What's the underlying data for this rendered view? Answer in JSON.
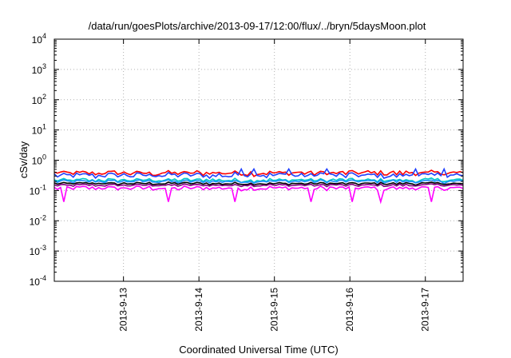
{
  "chart_data": {
    "type": "line",
    "title": "/data/run/goesPlots/archive/2013-09-17/12:00/flux/../bryn/5daysMoon.plot",
    "xlabel": "Coordinated Universal Time (UTC)",
    "ylabel": "cSv/day",
    "yscale": "log",
    "ylim": [
      0.0001,
      10000
    ],
    "xlim": [
      "2013-09-12 02:00",
      "2013-09-17 12:00"
    ],
    "x_ticks": [
      "2013-9-13",
      "2013-9-14",
      "2013-9-15",
      "2013-9-16",
      "2013-9-17"
    ],
    "y_ticks": [
      {
        "base": "10",
        "exp": "-4",
        "value": 0.0001
      },
      {
        "base": "10",
        "exp": "-3",
        "value": 0.001
      },
      {
        "base": "10",
        "exp": "-2",
        "value": 0.01
      },
      {
        "base": "10",
        "exp": "-1",
        "value": 0.1
      },
      {
        "base": "10",
        "exp": "0",
        "value": 1
      },
      {
        "base": "10",
        "exp": "1",
        "value": 10
      },
      {
        "base": "10",
        "exp": "2",
        "value": 100
      },
      {
        "base": "10",
        "exp": "3",
        "value": 1000
      },
      {
        "base": "10",
        "exp": "4",
        "value": 10000
      }
    ],
    "grid": true,
    "series": [
      {
        "color": "#ff0000",
        "level": 0.38,
        "spread": 0.12
      },
      {
        "color": "#2040ff",
        "level": 0.32,
        "spread": 0.14
      },
      {
        "color": "#00c8c8",
        "level": 0.22,
        "spread": 0.09
      },
      {
        "color": "#1e90ff",
        "level": 0.2,
        "spread": 0.08
      },
      {
        "color": "#000000",
        "level": 0.17,
        "spread": 0.06
      },
      {
        "color": "#800080",
        "level": 0.15,
        "spread": 0.06
      },
      {
        "color": "#ff00ff",
        "level": 0.12,
        "spread": 0.1
      }
    ]
  }
}
